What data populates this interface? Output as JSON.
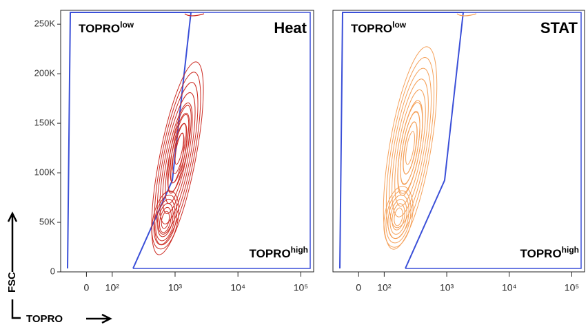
{
  "chart_data": [
    {
      "type": "contour",
      "title": "Heat",
      "contour_color": "#cc2a22",
      "gate_color": "#3a4fd8",
      "annotations": [
        {
          "text": "TOPRO",
          "sup": "low"
        },
        {
          "text": "TOPRO",
          "sup": "high"
        }
      ],
      "x_label": "TOPRO",
      "y_label": "FSC",
      "xlim": [
        -100,
        160000
      ],
      "ylim": [
        0,
        264000
      ],
      "xticks": [
        {
          "value": 0,
          "label": "0"
        },
        {
          "value": 100,
          "label": "10²"
        },
        {
          "value": 1000,
          "label": "10³"
        },
        {
          "value": 10000,
          "label": "10⁴"
        },
        {
          "value": 100000,
          "label": "10⁵"
        }
      ],
      "yticks": [
        {
          "value": 0,
          "label": "0"
        },
        {
          "value": 50000,
          "label": "50K"
        },
        {
          "value": 100000,
          "label": "100K"
        },
        {
          "value": 150000,
          "label": "150K"
        },
        {
          "value": 200000,
          "label": "200K"
        },
        {
          "value": 250000,
          "label": "250K"
        }
      ]
    },
    {
      "type": "contour",
      "title": "STAT",
      "contour_color": "#f5a15a",
      "gate_color": "#3a4fd8",
      "annotations": [
        {
          "text": "TOPRO",
          "sup": "low"
        },
        {
          "text": "TOPRO",
          "sup": "high"
        }
      ],
      "xlim": [
        -100,
        160000
      ],
      "ylim": [
        0,
        264000
      ],
      "xticks": [
        {
          "value": 0,
          "label": "0"
        },
        {
          "value": 100,
          "label": "10²"
        },
        {
          "value": 1000,
          "label": "10³"
        },
        {
          "value": 10000,
          "label": "10⁴"
        },
        {
          "value": 100000,
          "label": "10⁵"
        }
      ]
    }
  ]
}
